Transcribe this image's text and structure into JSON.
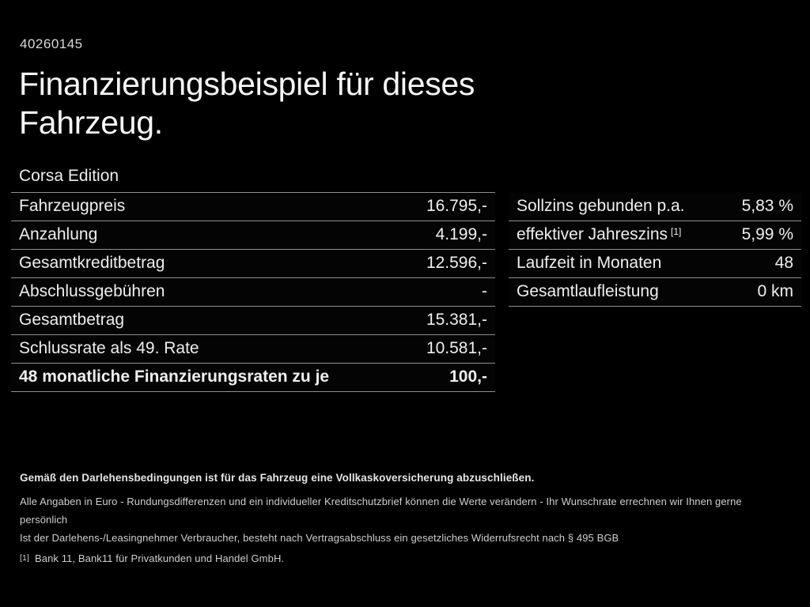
{
  "page": {
    "doc_id": "40260145",
    "title_line1": "Finanzierungsbeispiel für dieses",
    "title_line2": "Fahrzeug.",
    "model": "Corsa Edition"
  },
  "left_table": {
    "rows": [
      {
        "label": "Fahrzeugpreis",
        "value": "16.795,-"
      },
      {
        "label": "Anzahlung",
        "value": "4.199,-"
      },
      {
        "label": "Gesamtkreditbetrag",
        "value": "12.596,-"
      },
      {
        "label": "Abschlussgebühren",
        "value": "-"
      },
      {
        "label": "Gesamtbetrag",
        "value": "15.381,-"
      },
      {
        "label": "Schlussrate als 49. Rate",
        "value": "10.581,-"
      },
      {
        "label": "48 monatliche Finanzierungsraten zu je",
        "value": "100,-"
      }
    ]
  },
  "right_table": {
    "rows": [
      {
        "label": "Sollzins gebunden p.a.",
        "value": "5,83 %"
      },
      {
        "label": "effektiver Jahreszins",
        "sup": "[1]",
        "value": "5,99 %"
      },
      {
        "label": "Laufzeit in Monaten",
        "value": "48"
      },
      {
        "label": "Gesamtlaufleistung",
        "value": "0 km"
      }
    ]
  },
  "footnotes": {
    "insurance_bold": "Gemäß den Darlehensbedingungen ist für das Fahrzeug eine Vollkaskoversicherung abzuschließen.",
    "disclaimer1": "Alle Angaben in Euro - Rundungsdifferenzen und ein individueller Kreditschutzbrief können die Werte verändern - Ihr Wunschrate errechnen wir Ihnen gerne persönlich",
    "disclaimer2": "Ist der Darlehens-/Leasingnehmer Verbraucher, besteht nach Vertragsabschluss ein gesetzliches Widerrufsrecht nach § 495 BGB",
    "ref_marker": "[1]",
    "ref_text": "Bank 11, Bank11 für Privatkunden und Handel GmbH."
  },
  "colors": {
    "background": "#000000",
    "text": "#f2f2f2",
    "divider": "#8f8f8f"
  }
}
